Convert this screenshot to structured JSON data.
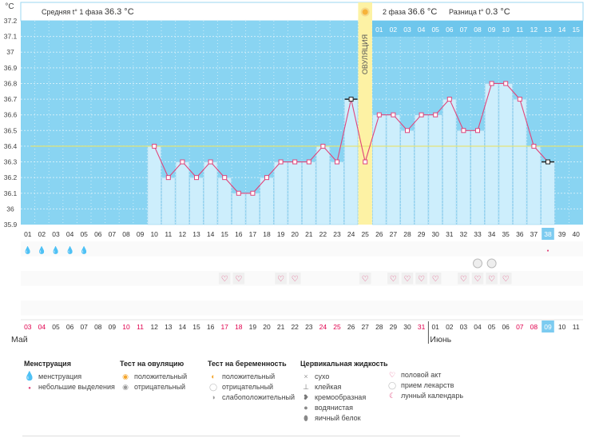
{
  "chart_data": {
    "type": "line",
    "unit": "°C",
    "yticks": [
      "37.2",
      "37.1",
      "37",
      "36.9",
      "36.8",
      "36.7",
      "36.6",
      "36.5",
      "36.4",
      "36.3",
      "36.2",
      "36.1",
      "36",
      "35.9"
    ],
    "ylim": [
      35.9,
      37.2
    ],
    "days": [
      "01",
      "02",
      "03",
      "04",
      "05",
      "06",
      "07",
      "08",
      "09",
      "10",
      "11",
      "12",
      "13",
      "14",
      "15",
      "16",
      "17",
      "18",
      "19",
      "20",
      "21",
      "22",
      "23",
      "24",
      "25",
      "26",
      "27",
      "28",
      "29",
      "30",
      "31",
      "32",
      "33",
      "34",
      "35",
      "36",
      "37",
      "38",
      "39",
      "40"
    ],
    "today_index": 37,
    "temps": [
      null,
      null,
      null,
      null,
      null,
      null,
      null,
      null,
      null,
      36.4,
      36.2,
      36.3,
      36.2,
      36.3,
      36.2,
      36.1,
      36.1,
      36.2,
      36.3,
      36.3,
      36.3,
      36.4,
      36.3,
      36.7,
      36.3,
      36.6,
      36.6,
      36.5,
      36.6,
      36.6,
      36.7,
      36.5,
      36.5,
      36.8,
      36.8,
      36.7,
      36.4,
      36.3,
      null,
      null
    ],
    "cover_line": 36.4,
    "ovulation_index": 24,
    "ovulation_label": "ОВУЛЯЦИЯ",
    "phase1_avg_label": "Средняя t° 1 фаза",
    "phase1_avg": "36.3 °С",
    "phase2_label": "2 фаза",
    "phase2_avg": "36.6 °С",
    "diff_label": "Разница t°",
    "diff_value": "0.3 °С",
    "phase2_days": [
      "01",
      "02",
      "03",
      "04",
      "05",
      "06",
      "07",
      "08",
      "09",
      "10",
      "11",
      "12",
      "13",
      "14",
      "15"
    ],
    "dates": [
      "03",
      "04",
      "05",
      "06",
      "07",
      "08",
      "09",
      "10",
      "11",
      "12",
      "13",
      "14",
      "15",
      "16",
      "17",
      "18",
      "19",
      "20",
      "21",
      "22",
      "23",
      "24",
      "25",
      "26",
      "27",
      "28",
      "29",
      "30",
      "31",
      "01",
      "02",
      "03",
      "04",
      "05",
      "06",
      "07",
      "08",
      "09",
      "10",
      "11"
    ],
    "weekend_date_indices": [
      0,
      1,
      7,
      8,
      14,
      15,
      21,
      22,
      28,
      35,
      36
    ],
    "month_start_label": "Май",
    "month_change_label": "Июнь",
    "month_change_index": 29,
    "menstruation_days": [
      0,
      1,
      2,
      3,
      4
    ],
    "spotting_days": [
      37
    ],
    "negative_test_days": [
      32,
      33
    ],
    "intercourse_days": [
      14,
      15,
      18,
      19,
      24,
      26,
      27,
      28,
      29,
      31,
      32,
      33,
      34
    ]
  },
  "legend": {
    "menstruation": {
      "title": "Менструация",
      "items": [
        "менструация",
        "небольшие выделения"
      ]
    },
    "ovulation_test": {
      "title": "Тест на овуляцию",
      "items": [
        "положительный",
        "отрицательный"
      ]
    },
    "pregnancy_test": {
      "title": "Тест на беременность",
      "items": [
        "положительный",
        "отрицательный",
        "слабоположительный"
      ]
    },
    "cervical": {
      "title": "Цервикальная жидкость",
      "items": [
        "сухо",
        "клейкая",
        "кремообразная",
        "водянистая",
        "яичный белок"
      ]
    },
    "other": {
      "items": [
        "половой акт",
        "прием лекарств",
        "лунный календарь"
      ]
    }
  },
  "colors": {
    "sky": "#89d4f2",
    "bar": "#cdeefc",
    "line": "#e0457b",
    "ovulation": "#fdf2a4",
    "cover": "#e8e36a",
    "weekend": "#e0004d",
    "today": "#7ccbf0"
  }
}
